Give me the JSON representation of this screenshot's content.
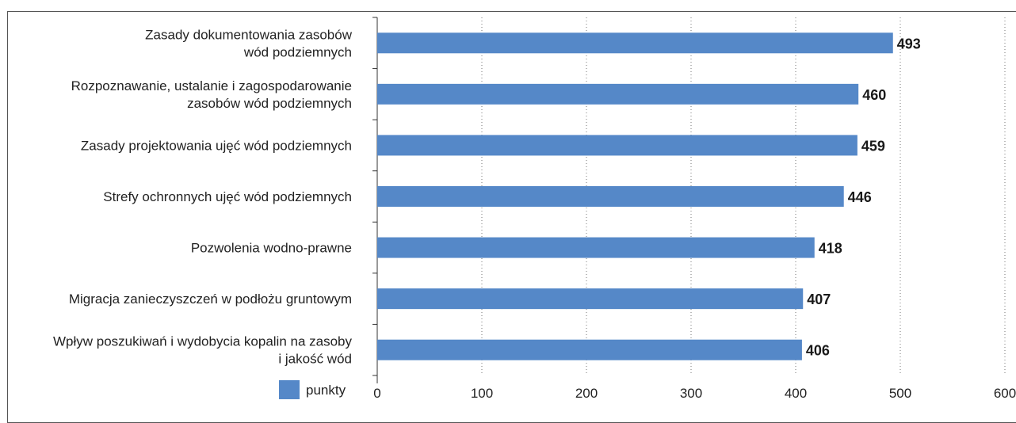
{
  "chart_data": {
    "type": "bar",
    "orientation": "horizontal",
    "categories": [
      [
        "Zasady dokumentowania zasobów",
        "wód podziemnych"
      ],
      [
        "Rozpoznawanie, ustalanie i zagospodarowanie",
        "zasobów wód podziemnych"
      ],
      [
        "Zasady projektowania ujęć wód podziemnych"
      ],
      [
        "Strefy ochronnych ujęć wód podziemnych"
      ],
      [
        "Pozwolenia wodno-prawne"
      ],
      [
        "Migracja zanieczyszczeń w podłożu gruntowym"
      ],
      [
        "Wpływ poszukiwań i wydobycia kopalin na zasoby",
        "i jakość wód"
      ]
    ],
    "series": [
      {
        "name": "punkty",
        "values": [
          493,
          460,
          459,
          446,
          418,
          407,
          406
        ],
        "color": "#5588c8"
      }
    ],
    "data_labels": [
      "493",
      "460",
      "459",
      "446",
      "418",
      "407",
      "406"
    ],
    "xlim": [
      0,
      600
    ],
    "xticks": [
      0,
      100,
      200,
      300,
      400,
      500,
      600
    ],
    "xtick_labels": [
      "0",
      "100",
      "200",
      "300",
      "400",
      "500",
      "600"
    ],
    "grid": "vertical dotted",
    "legend_position": "bottom-left"
  }
}
